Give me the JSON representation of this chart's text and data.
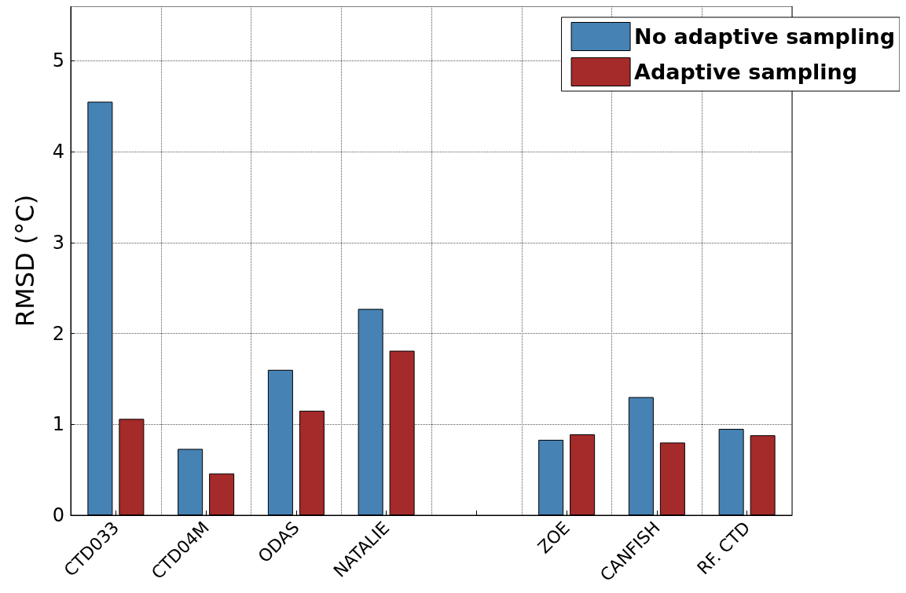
{
  "chart_data": {
    "type": "bar",
    "ylabel": "RMSD (°C)",
    "categories": [
      "CTD033",
      "CTD04M",
      "ODAS",
      "NATALIE",
      null,
      "ZOE",
      "CANFISH",
      "RF. CTD"
    ],
    "series": [
      {
        "name": "No adaptive sampling",
        "color": "#4682b4",
        "values": [
          4.55,
          0.73,
          1.6,
          2.27,
          null,
          0.83,
          1.3,
          0.95
        ]
      },
      {
        "name": "Adaptive sampling",
        "color": "#a52a2a",
        "values": [
          1.06,
          0.46,
          1.15,
          1.81,
          null,
          0.89,
          0.8,
          0.88
        ]
      }
    ],
    "ylim": [
      0,
      5.6
    ],
    "yticks": [
      0,
      1,
      2,
      3,
      4,
      5
    ],
    "grid": true,
    "legend": "top right"
  }
}
